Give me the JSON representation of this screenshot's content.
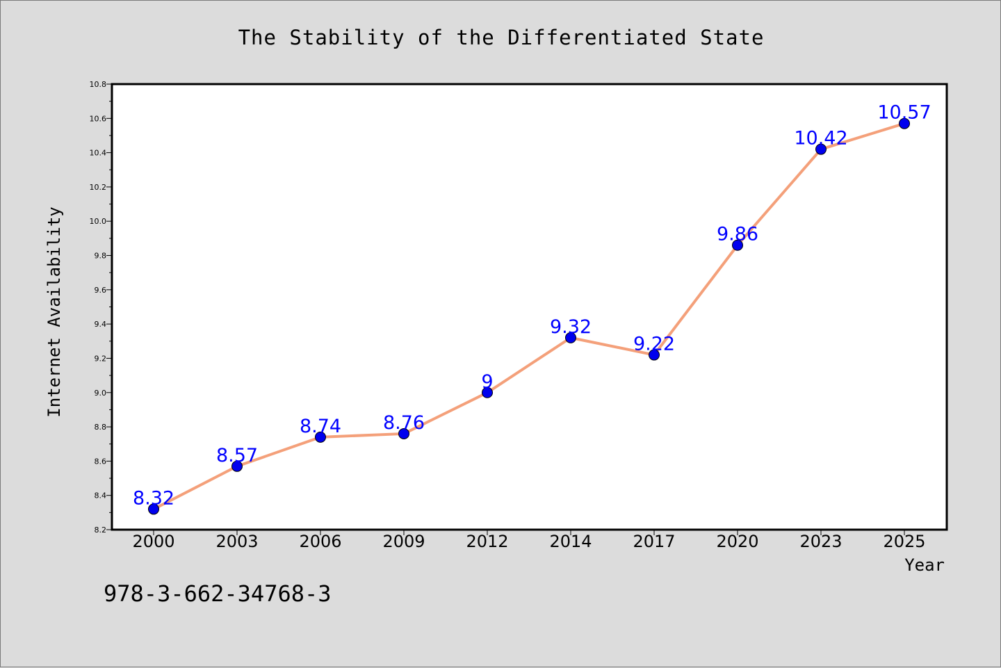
{
  "page": {
    "identifier_text": "978-3-662-34768-3"
  },
  "chart_data": {
    "type": "line",
    "title": "The Stability of the Differentiated State",
    "xlabel": "Year",
    "ylabel": "Internet Availability",
    "categories": [
      "2000",
      "2003",
      "2006",
      "2009",
      "2012",
      "2014",
      "2017",
      "2020",
      "2023",
      "2025"
    ],
    "series": [
      {
        "values": [
          8.32,
          8.57,
          8.74,
          8.76,
          9.0,
          9.32,
          9.22,
          9.86,
          10.42,
          10.57
        ],
        "data_labels": [
          "8.32",
          "8.57",
          "8.74",
          "8.76",
          "9",
          "9.32",
          "9.22",
          "9.86",
          "10.42",
          "10.57"
        ],
        "line_color": "#f4a07a",
        "marker_color": "#0000ee",
        "label_color": "#0000ff"
      }
    ],
    "ylim": [
      8.2,
      10.8
    ],
    "yticks": [
      "8.2",
      "8.4",
      "8.6",
      "8.8",
      "9.0",
      "9.2",
      "9.4",
      "9.6",
      "9.8",
      "10.0",
      "10.2",
      "10.4",
      "10.6",
      "10.8"
    ],
    "grid": false,
    "legend": "none"
  }
}
